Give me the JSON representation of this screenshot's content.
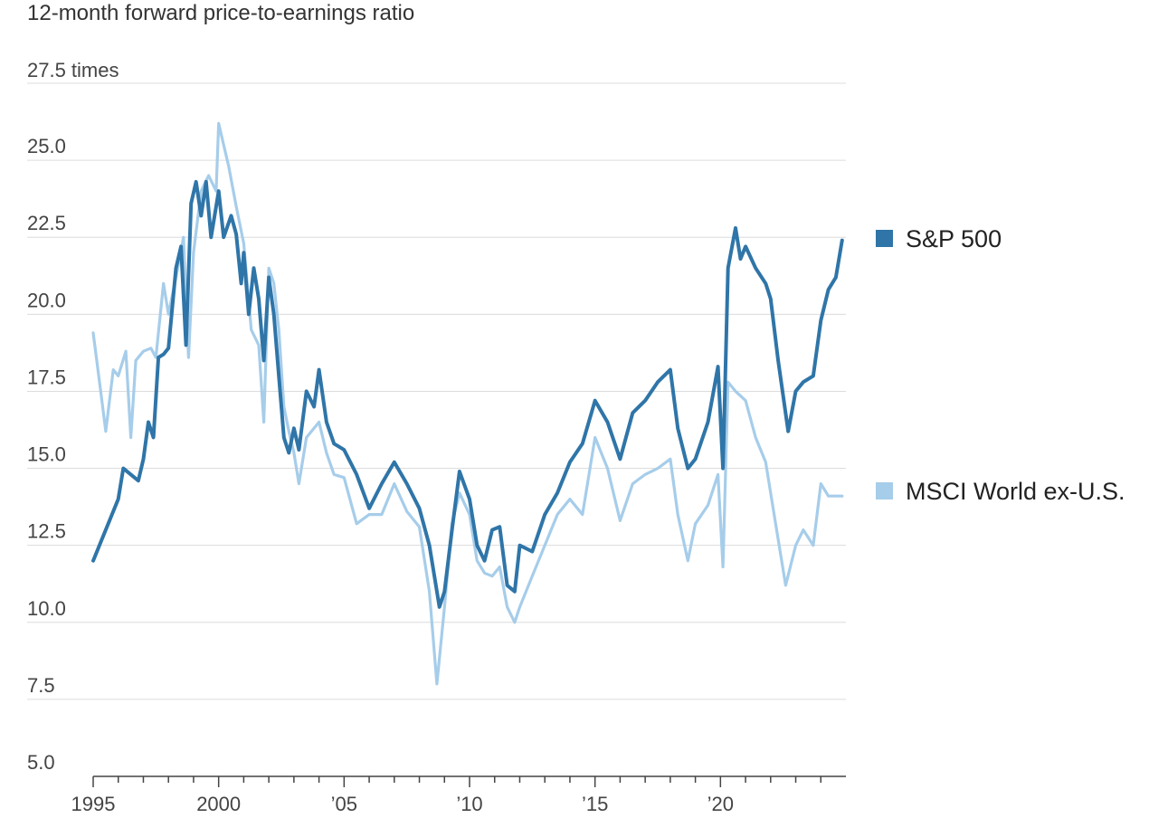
{
  "chart_data": {
    "type": "line",
    "subtitle": "12-month forward price-to-earnings ratio",
    "y_unit_label": "27.5 times",
    "ylim": [
      5.0,
      27.5
    ],
    "y_ticks": [
      5.0,
      7.5,
      10.0,
      12.5,
      15.0,
      17.5,
      20.0,
      22.5,
      25.0
    ],
    "y_tick_labels": [
      "5.0",
      "7.5",
      "10.0",
      "12.5",
      "15.0",
      "17.5",
      "20.0",
      "22.5",
      "25.0"
    ],
    "xlim": [
      1995,
      2025
    ],
    "x_ticks": [
      1995,
      2000,
      2005,
      2010,
      2015,
      2020
    ],
    "x_tick_labels": [
      "1995",
      "2000",
      "’05",
      "’10",
      "’15",
      "’20"
    ],
    "grid": true,
    "legend_placement": "right",
    "series": [
      {
        "name": "S&P 500",
        "color": "#2f75a8",
        "points": [
          [
            1995.0,
            12.0
          ],
          [
            1995.3,
            12.6
          ],
          [
            1995.7,
            13.4
          ],
          [
            1996.0,
            14.0
          ],
          [
            1996.2,
            15.0
          ],
          [
            1996.5,
            14.8
          ],
          [
            1996.8,
            14.6
          ],
          [
            1997.0,
            15.3
          ],
          [
            1997.2,
            16.5
          ],
          [
            1997.4,
            16.0
          ],
          [
            1997.6,
            18.6
          ],
          [
            1997.8,
            18.7
          ],
          [
            1998.0,
            18.9
          ],
          [
            1998.3,
            21.5
          ],
          [
            1998.5,
            22.2
          ],
          [
            1998.7,
            19.0
          ],
          [
            1998.9,
            23.6
          ],
          [
            1999.1,
            24.3
          ],
          [
            1999.3,
            23.2
          ],
          [
            1999.5,
            24.3
          ],
          [
            1999.7,
            22.5
          ],
          [
            2000.0,
            24.0
          ],
          [
            2000.2,
            22.5
          ],
          [
            2000.5,
            23.2
          ],
          [
            2000.7,
            22.6
          ],
          [
            2000.9,
            21.0
          ],
          [
            2001.0,
            22.0
          ],
          [
            2001.2,
            20.0
          ],
          [
            2001.4,
            21.5
          ],
          [
            2001.6,
            20.5
          ],
          [
            2001.8,
            18.5
          ],
          [
            2002.0,
            21.2
          ],
          [
            2002.2,
            20.0
          ],
          [
            2002.4,
            18.0
          ],
          [
            2002.6,
            16.0
          ],
          [
            2002.8,
            15.5
          ],
          [
            2003.0,
            16.3
          ],
          [
            2003.2,
            15.6
          ],
          [
            2003.5,
            17.5
          ],
          [
            2003.8,
            17.0
          ],
          [
            2004.0,
            18.2
          ],
          [
            2004.3,
            16.5
          ],
          [
            2004.6,
            15.8
          ],
          [
            2005.0,
            15.6
          ],
          [
            2005.5,
            14.8
          ],
          [
            2006.0,
            13.7
          ],
          [
            2006.5,
            14.5
          ],
          [
            2007.0,
            15.2
          ],
          [
            2007.5,
            14.5
          ],
          [
            2008.0,
            13.7
          ],
          [
            2008.4,
            12.5
          ],
          [
            2008.8,
            10.5
          ],
          [
            2009.0,
            11.0
          ],
          [
            2009.3,
            13.0
          ],
          [
            2009.6,
            14.9
          ],
          [
            2010.0,
            14.0
          ],
          [
            2010.3,
            12.5
          ],
          [
            2010.6,
            12.0
          ],
          [
            2010.9,
            13.0
          ],
          [
            2011.2,
            13.1
          ],
          [
            2011.5,
            11.2
          ],
          [
            2011.8,
            11.0
          ],
          [
            2012.0,
            12.5
          ],
          [
            2012.5,
            12.3
          ],
          [
            2013.0,
            13.5
          ],
          [
            2013.5,
            14.2
          ],
          [
            2014.0,
            15.2
          ],
          [
            2014.5,
            15.8
          ],
          [
            2015.0,
            17.2
          ],
          [
            2015.5,
            16.5
          ],
          [
            2016.0,
            15.3
          ],
          [
            2016.5,
            16.8
          ],
          [
            2017.0,
            17.2
          ],
          [
            2017.5,
            17.8
          ],
          [
            2018.0,
            18.2
          ],
          [
            2018.3,
            16.3
          ],
          [
            2018.7,
            15.0
          ],
          [
            2019.0,
            15.3
          ],
          [
            2019.5,
            16.5
          ],
          [
            2019.9,
            18.3
          ],
          [
            2020.1,
            15.0
          ],
          [
            2020.3,
            21.5
          ],
          [
            2020.6,
            22.8
          ],
          [
            2020.8,
            21.8
          ],
          [
            2021.0,
            22.2
          ],
          [
            2021.4,
            21.5
          ],
          [
            2021.8,
            21.0
          ],
          [
            2022.0,
            20.5
          ],
          [
            2022.3,
            18.5
          ],
          [
            2022.7,
            16.2
          ],
          [
            2023.0,
            17.5
          ],
          [
            2023.3,
            17.8
          ],
          [
            2023.7,
            18.0
          ],
          [
            2024.0,
            19.8
          ],
          [
            2024.3,
            20.8
          ],
          [
            2024.6,
            21.2
          ],
          [
            2024.85,
            22.4
          ]
        ]
      },
      {
        "name": "MSCI World ex-U.S.",
        "color": "#a6cdea",
        "points": [
          [
            1995.0,
            19.4
          ],
          [
            1995.3,
            17.5
          ],
          [
            1995.5,
            16.2
          ],
          [
            1995.8,
            18.2
          ],
          [
            1996.0,
            18.0
          ],
          [
            1996.3,
            18.8
          ],
          [
            1996.5,
            16.0
          ],
          [
            1996.7,
            18.5
          ],
          [
            1997.0,
            18.8
          ],
          [
            1997.3,
            18.9
          ],
          [
            1997.5,
            18.6
          ],
          [
            1997.8,
            21.0
          ],
          [
            1998.0,
            20.0
          ],
          [
            1998.3,
            21.2
          ],
          [
            1998.6,
            22.5
          ],
          [
            1998.8,
            18.6
          ],
          [
            1999.0,
            22.0
          ],
          [
            1999.3,
            24.0
          ],
          [
            1999.6,
            24.5
          ],
          [
            1999.9,
            24.0
          ],
          [
            2000.0,
            26.2
          ],
          [
            2000.2,
            25.5
          ],
          [
            2000.4,
            24.8
          ],
          [
            2000.7,
            23.5
          ],
          [
            2001.0,
            22.3
          ],
          [
            2001.3,
            19.5
          ],
          [
            2001.6,
            19.0
          ],
          [
            2001.8,
            16.5
          ],
          [
            2002.0,
            21.5
          ],
          [
            2002.2,
            21.0
          ],
          [
            2002.4,
            19.5
          ],
          [
            2002.6,
            17.0
          ],
          [
            2002.8,
            16.2
          ],
          [
            2003.0,
            15.5
          ],
          [
            2003.2,
            14.5
          ],
          [
            2003.5,
            16.0
          ],
          [
            2004.0,
            16.5
          ],
          [
            2004.3,
            15.5
          ],
          [
            2004.6,
            14.8
          ],
          [
            2005.0,
            14.7
          ],
          [
            2005.5,
            13.2
          ],
          [
            2006.0,
            13.5
          ],
          [
            2006.5,
            13.5
          ],
          [
            2007.0,
            14.5
          ],
          [
            2007.5,
            13.6
          ],
          [
            2008.0,
            13.1
          ],
          [
            2008.4,
            11.0
          ],
          [
            2008.7,
            8.0
          ],
          [
            2009.0,
            10.5
          ],
          [
            2009.3,
            13.2
          ],
          [
            2009.6,
            14.2
          ],
          [
            2010.0,
            13.5
          ],
          [
            2010.3,
            12.0
          ],
          [
            2010.6,
            11.6
          ],
          [
            2010.9,
            11.5
          ],
          [
            2011.2,
            11.8
          ],
          [
            2011.5,
            10.5
          ],
          [
            2011.8,
            10.0
          ],
          [
            2012.0,
            10.5
          ],
          [
            2012.5,
            11.5
          ],
          [
            2013.0,
            12.5
          ],
          [
            2013.5,
            13.5
          ],
          [
            2014.0,
            14.0
          ],
          [
            2014.5,
            13.5
          ],
          [
            2015.0,
            16.0
          ],
          [
            2015.5,
            15.0
          ],
          [
            2016.0,
            13.3
          ],
          [
            2016.5,
            14.5
          ],
          [
            2017.0,
            14.8
          ],
          [
            2017.5,
            15.0
          ],
          [
            2018.0,
            15.3
          ],
          [
            2018.3,
            13.5
          ],
          [
            2018.7,
            12.0
          ],
          [
            2019.0,
            13.2
          ],
          [
            2019.5,
            13.8
          ],
          [
            2019.9,
            14.8
          ],
          [
            2020.1,
            11.8
          ],
          [
            2020.3,
            17.8
          ],
          [
            2020.6,
            17.5
          ],
          [
            2021.0,
            17.2
          ],
          [
            2021.4,
            16.0
          ],
          [
            2021.8,
            15.2
          ],
          [
            2022.2,
            13.2
          ],
          [
            2022.6,
            11.2
          ],
          [
            2023.0,
            12.5
          ],
          [
            2023.3,
            13.0
          ],
          [
            2023.7,
            12.5
          ],
          [
            2024.0,
            14.5
          ],
          [
            2024.3,
            14.1
          ],
          [
            2024.85,
            14.1
          ]
        ]
      }
    ]
  }
}
